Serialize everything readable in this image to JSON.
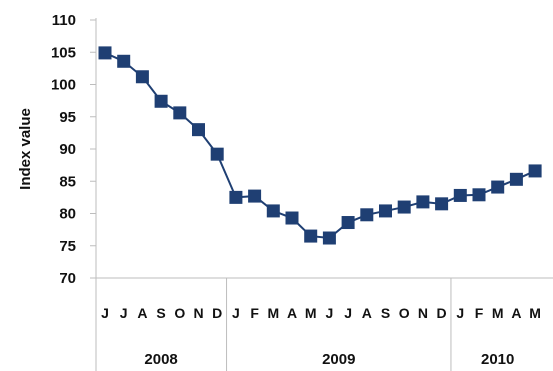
{
  "chart_data": {
    "type": "line",
    "ylabel": "Index value",
    "ylim": [
      70,
      110
    ],
    "yticks": [
      70,
      75,
      80,
      85,
      90,
      95,
      100,
      105,
      110
    ],
    "grid": false,
    "legend": "none",
    "months": [
      "J",
      "J",
      "A",
      "S",
      "O",
      "N",
      "D",
      "J",
      "F",
      "M",
      "A",
      "M",
      "J",
      "J",
      "A",
      "S",
      "O",
      "N",
      "D",
      "J",
      "F",
      "M",
      "A",
      "M"
    ],
    "years": [
      {
        "label": "2008",
        "start": 0,
        "count": 7
      },
      {
        "label": "2009",
        "start": 7,
        "count": 12
      },
      {
        "label": "2010",
        "start": 19,
        "count": 5
      }
    ],
    "series": [
      {
        "color": "#1f3f73",
        "values": [
          104.9,
          103.6,
          101.2,
          97.4,
          95.6,
          93.0,
          89.2,
          82.5,
          82.7,
          80.4,
          79.3,
          76.5,
          76.2,
          78.6,
          79.8,
          80.4,
          81.0,
          81.8,
          81.5,
          82.8,
          82.9,
          84.1,
          85.3,
          86.6
        ]
      }
    ]
  }
}
